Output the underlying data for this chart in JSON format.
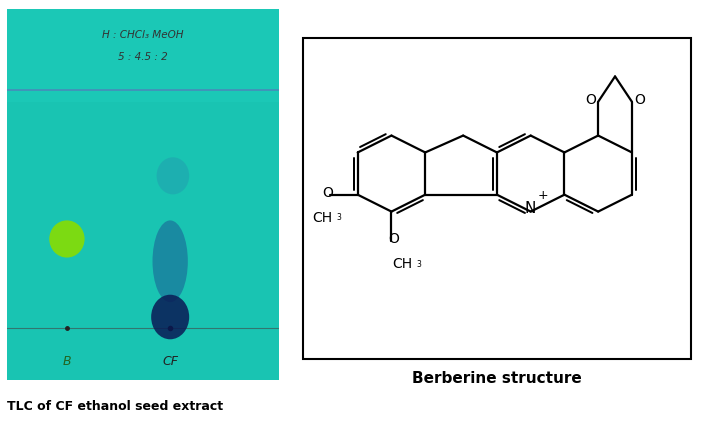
{
  "fig_width": 7.15,
  "fig_height": 4.32,
  "dpi": 100,
  "tlc_bg_color": "#19c4b2",
  "solvent_line_color": "#5577bb",
  "baseline_color": "#444444",
  "B_spot_color": "#88dd00",
  "CF_spot_color1": "#0a1a55",
  "CF_spot_color2": "#1a3388",
  "caption_text": "TLC of CF ethanol seed extract",
  "structure_caption": "Berberine structure",
  "label_B": "B",
  "label_CF": "CF",
  "handwritten_line1": "H : CHCl₃ MeOH",
  "handwritten_line2": "5 : 4.5 : 2"
}
